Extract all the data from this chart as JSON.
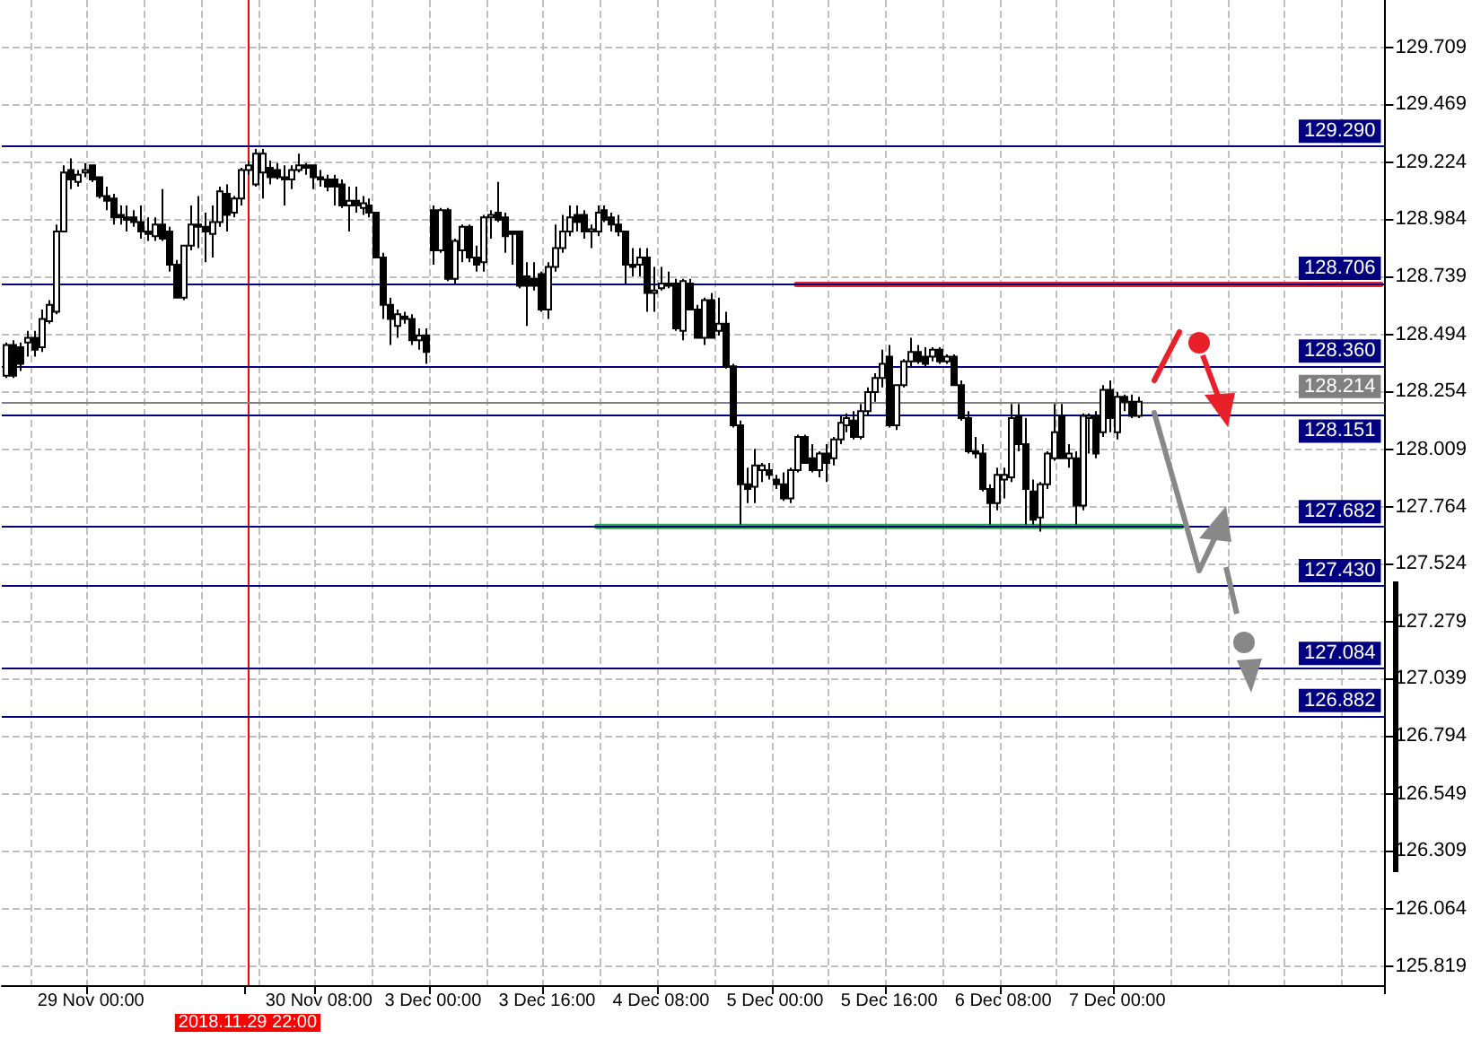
{
  "chart_data": {
    "type": "candlestick",
    "color": "#000000",
    "categories": [
      null,
      null,
      null,
      null,
      null,
      null,
      null,
      null,
      null,
      null,
      null,
      null,
      "29 Nov 00:00",
      null,
      null,
      null,
      null,
      null,
      null,
      null,
      null,
      null,
      null,
      null,
      null,
      null,
      null,
      null,
      null,
      null,
      null,
      null,
      null,
      null,
      "2018.11.29 22:00",
      null,
      null,
      null,
      null,
      null,
      null,
      null,
      null,
      null,
      "30 Nov 08:00",
      null,
      null,
      null,
      null,
      null,
      null,
      null,
      null,
      null,
      null,
      null,
      null,
      null,
      null,
      null,
      "3 Dec 00:00",
      null,
      null,
      null,
      null,
      null,
      null,
      null,
      null,
      null,
      null,
      null,
      null,
      null,
      null,
      null,
      "3 Dec 16:00",
      null,
      null,
      null,
      null,
      null,
      null,
      null,
      null,
      null,
      null,
      null,
      null,
      null,
      null,
      null,
      "4 Dec 08:00",
      null,
      null,
      null,
      null,
      null,
      null,
      null,
      null,
      null,
      null,
      null,
      null,
      null,
      null,
      null,
      "5 Dec 00:00",
      null,
      null,
      null,
      null,
      null,
      null,
      null,
      null,
      null,
      null,
      null,
      null,
      null,
      null,
      null,
      "5 Dec 16:00",
      null,
      null,
      null,
      null,
      null,
      null,
      null,
      null,
      null,
      null,
      null,
      null,
      null,
      null,
      null,
      "6 Dec 08:00",
      null,
      null,
      null,
      null,
      null,
      null,
      null,
      null,
      null,
      null,
      null,
      null,
      null,
      null,
      null,
      "7 Dec 00:00",
      null,
      null,
      null,
      null,
      null,
      null,
      null,
      null,
      null,
      null,
      null,
      null,
      null,
      null,
      null,
      null,
      null,
      null,
      null,
      null,
      null,
      null,
      null,
      null,
      null,
      null,
      null,
      null,
      null,
      null,
      null,
      null,
      null,
      null,
      null,
      null,
      null
    ],
    "ohlc": [
      [
        128.32,
        128.46,
        128.31,
        128.45
      ],
      [
        128.45,
        128.47,
        128.31,
        128.32
      ],
      [
        128.44,
        128.46,
        128.34,
        128.37
      ],
      [
        128.46,
        128.51,
        128.4,
        128.48
      ],
      [
        128.48,
        128.51,
        128.4,
        128.43
      ],
      [
        128.44,
        128.6,
        128.42,
        128.56
      ],
      [
        128.55,
        128.64,
        128.54,
        128.62
      ],
      [
        128.59,
        128.96,
        128.58,
        128.93
      ],
      [
        128.93,
        129.21,
        128.93,
        129.18
      ],
      [
        129.19,
        129.24,
        129.11,
        129.15
      ],
      [
        129.14,
        129.19,
        129.12,
        129.17
      ],
      [
        129.18,
        129.22,
        129.16,
        129.19
      ],
      [
        129.21,
        129.21,
        129.14,
        129.15
      ],
      [
        129.16,
        129.16,
        129.07,
        129.08
      ],
      [
        129.08,
        129.12,
        129.02,
        129.06
      ],
      [
        129.07,
        129.09,
        128.96,
        128.99
      ],
      [
        129.0,
        129.04,
        128.96,
        128.99
      ],
      [
        128.99,
        129.04,
        128.93,
        128.98
      ],
      [
        128.99,
        129.02,
        128.95,
        128.97
      ],
      [
        128.97,
        129.04,
        128.9,
        128.93
      ],
      [
        128.93,
        128.99,
        128.89,
        128.92
      ],
      [
        128.91,
        128.99,
        128.89,
        128.96
      ],
      [
        128.96,
        129.11,
        128.89,
        128.9
      ],
      [
        128.93,
        128.95,
        128.76,
        128.79
      ],
      [
        128.79,
        128.81,
        128.65,
        128.65
      ],
      [
        128.65,
        128.87,
        128.64,
        128.87
      ],
      [
        128.87,
        129.04,
        128.85,
        128.96
      ],
      [
        128.96,
        129.08,
        128.86,
        128.95
      ],
      [
        128.95,
        129.01,
        128.8,
        128.93
      ],
      [
        128.92,
        129.04,
        128.82,
        128.97
      ],
      [
        128.97,
        129.12,
        128.95,
        129.1
      ],
      [
        129.09,
        129.13,
        128.93,
        129.0
      ],
      [
        129.01,
        129.08,
        128.99,
        129.07
      ],
      [
        129.07,
        129.2,
        129.04,
        129.19
      ],
      [
        129.19,
        129.23,
        129.17,
        129.21
      ],
      [
        129.13,
        129.28,
        129.12,
        129.26
      ],
      [
        129.18,
        129.28,
        129.07,
        129.26
      ],
      [
        129.2,
        129.23,
        129.13,
        129.16
      ],
      [
        129.19,
        129.22,
        129.15,
        129.16
      ],
      [
        129.16,
        129.21,
        129.04,
        129.15
      ],
      [
        129.15,
        129.21,
        129.11,
        129.19
      ],
      [
        129.19,
        129.26,
        129.18,
        129.21
      ],
      [
        129.21,
        129.22,
        129.17,
        129.2
      ],
      [
        129.21,
        129.21,
        129.11,
        129.16
      ],
      [
        129.16,
        129.19,
        129.12,
        129.15
      ],
      [
        129.15,
        129.17,
        129.1,
        129.12
      ],
      [
        129.15,
        129.17,
        129.04,
        129.12
      ],
      [
        129.13,
        129.15,
        129.03,
        129.04
      ],
      [
        129.04,
        129.12,
        128.93,
        129.06
      ],
      [
        129.06,
        129.12,
        129.01,
        129.04
      ],
      [
        129.03,
        129.08,
        129.0,
        129.05
      ],
      [
        129.04,
        129.07,
        128.99,
        129.01
      ],
      [
        129.01,
        129.01,
        128.82,
        128.82
      ],
      [
        128.82,
        128.84,
        128.56,
        128.62
      ],
      [
        128.62,
        128.65,
        128.45,
        128.56
      ],
      [
        128.53,
        128.6,
        128.48,
        128.58
      ],
      [
        128.57,
        128.59,
        128.54,
        128.56
      ],
      [
        128.56,
        128.58,
        128.45,
        128.47
      ],
      [
        128.47,
        128.52,
        128.43,
        128.49
      ],
      [
        128.49,
        128.52,
        128.37,
        128.42
      ],
      [
        129.02,
        129.04,
        128.79,
        128.85
      ],
      [
        128.85,
        129.03,
        128.84,
        129.02
      ],
      [
        129.02,
        129.03,
        128.72,
        128.73
      ],
      [
        128.73,
        128.9,
        128.71,
        128.89
      ],
      [
        128.85,
        128.96,
        128.8,
        128.95
      ],
      [
        128.95,
        128.96,
        128.8,
        128.82
      ],
      [
        128.82,
        128.87,
        128.76,
        128.79
      ],
      [
        128.8,
        129.0,
        128.76,
        128.99
      ],
      [
        128.99,
        129.02,
        128.9,
        129.0
      ],
      [
        129.01,
        129.14,
        128.97,
        128.98
      ],
      [
        128.99,
        129.01,
        128.84,
        128.91
      ],
      [
        128.93,
        128.93,
        128.79,
        128.92
      ],
      [
        128.93,
        128.93,
        128.69,
        128.7
      ],
      [
        128.74,
        128.8,
        128.53,
        128.7
      ],
      [
        128.73,
        128.8,
        128.68,
        128.7
      ],
      [
        128.75,
        128.76,
        128.59,
        128.6
      ],
      [
        128.6,
        128.8,
        128.56,
        128.78
      ],
      [
        128.78,
        128.96,
        128.76,
        128.86
      ],
      [
        128.86,
        129.0,
        128.84,
        128.93
      ],
      [
        128.93,
        129.04,
        128.91,
        128.99
      ],
      [
        129.0,
        129.04,
        128.93,
        128.97
      ],
      [
        129.0,
        129.02,
        128.9,
        128.93
      ],
      [
        128.93,
        128.96,
        128.86,
        128.94
      ],
      [
        128.93,
        129.04,
        128.91,
        129.01
      ],
      [
        129.02,
        129.04,
        128.97,
        128.98
      ],
      [
        128.99,
        129.01,
        128.93,
        128.96
      ],
      [
        128.96,
        129.0,
        128.91,
        128.93
      ],
      [
        128.93,
        128.93,
        128.71,
        128.79
      ],
      [
        128.79,
        128.86,
        128.74,
        128.78
      ],
      [
        128.79,
        128.86,
        128.74,
        128.82
      ],
      [
        128.82,
        128.86,
        128.59,
        128.67
      ],
      [
        128.67,
        128.78,
        128.59,
        128.68
      ],
      [
        128.69,
        128.78,
        128.68,
        128.71
      ],
      [
        128.71,
        128.76,
        128.69,
        128.7
      ],
      [
        128.71,
        128.73,
        128.51,
        128.52
      ],
      [
        128.51,
        128.73,
        128.47,
        128.72
      ],
      [
        128.71,
        128.73,
        128.6,
        128.6
      ],
      [
        128.6,
        128.62,
        128.48,
        128.48
      ],
      [
        128.48,
        128.65,
        128.45,
        128.64
      ],
      [
        128.64,
        128.67,
        128.48,
        128.48
      ],
      [
        128.51,
        128.65,
        128.49,
        128.54
      ],
      [
        128.54,
        128.59,
        128.35,
        128.36
      ],
      [
        128.36,
        128.37,
        128.1,
        128.11
      ],
      [
        128.11,
        128.13,
        127.69,
        127.86
      ],
      [
        127.86,
        127.93,
        127.78,
        127.84
      ],
      [
        127.85,
        128.01,
        127.78,
        127.94
      ],
      [
        127.92,
        127.95,
        127.87,
        127.94
      ],
      [
        127.92,
        127.95,
        127.88,
        127.9
      ],
      [
        127.88,
        127.9,
        127.84,
        127.86
      ],
      [
        127.86,
        127.91,
        127.79,
        127.8
      ],
      [
        127.8,
        127.93,
        127.78,
        127.92
      ],
      [
        127.92,
        128.07,
        127.91,
        128.06
      ],
      [
        128.06,
        128.07,
        127.95,
        127.95
      ],
      [
        127.97,
        128.03,
        127.91,
        127.92
      ],
      [
        127.92,
        128.0,
        127.89,
        127.99
      ],
      [
        127.99,
        128.03,
        127.87,
        127.95
      ],
      [
        127.97,
        128.06,
        127.94,
        128.05
      ],
      [
        128.05,
        128.15,
        128.03,
        128.12
      ],
      [
        128.11,
        128.16,
        128.08,
        128.14
      ],
      [
        128.13,
        128.17,
        128.05,
        128.06
      ],
      [
        128.06,
        128.2,
        128.05,
        128.17
      ],
      [
        128.17,
        128.27,
        128.15,
        128.25
      ],
      [
        128.25,
        128.33,
        128.21,
        128.31
      ],
      [
        128.31,
        128.43,
        128.27,
        128.37
      ],
      [
        128.4,
        128.45,
        128.1,
        128.11
      ],
      [
        128.11,
        128.28,
        128.09,
        128.28
      ],
      [
        128.28,
        128.39,
        128.27,
        128.38
      ],
      [
        128.38,
        128.48,
        128.36,
        128.42
      ],
      [
        128.42,
        128.45,
        128.37,
        128.38
      ],
      [
        128.4,
        128.44,
        128.36,
        128.37
      ],
      [
        128.4,
        128.44,
        128.38,
        128.43
      ],
      [
        128.43,
        128.44,
        128.37,
        128.38
      ],
      [
        128.38,
        128.41,
        128.37,
        128.4
      ],
      [
        128.4,
        128.41,
        128.28,
        128.28
      ],
      [
        128.28,
        128.3,
        128.13,
        128.14
      ],
      [
        128.14,
        128.17,
        127.99,
        128.0
      ],
      [
        128.0,
        128.06,
        127.97,
        127.99
      ],
      [
        127.99,
        128.03,
        127.83,
        127.84
      ],
      [
        127.84,
        127.86,
        127.69,
        127.78
      ],
      [
        127.78,
        127.93,
        127.75,
        127.9
      ],
      [
        127.88,
        127.93,
        127.8,
        127.9
      ],
      [
        127.89,
        128.2,
        127.87,
        128.14
      ],
      [
        128.15,
        128.2,
        128.0,
        128.03
      ],
      [
        128.03,
        128.14,
        127.69,
        127.84
      ],
      [
        127.83,
        127.88,
        127.69,
        127.71
      ],
      [
        127.72,
        127.87,
        127.66,
        127.86
      ],
      [
        127.86,
        128.0,
        127.84,
        127.99
      ],
      [
        127.97,
        128.2,
        127.96,
        128.08
      ],
      [
        128.15,
        128.2,
        127.97,
        127.97
      ],
      [
        127.97,
        128.03,
        127.93,
        127.99
      ],
      [
        127.97,
        128.0,
        127.69,
        127.77
      ],
      [
        127.77,
        128.16,
        127.75,
        128.15
      ],
      [
        128.14,
        128.16,
        127.99,
        128.15
      ],
      [
        128.15,
        128.17,
        127.97,
        127.99
      ],
      [
        128.08,
        128.28,
        128.06,
        128.26
      ],
      [
        128.26,
        128.3,
        128.08,
        128.14
      ],
      [
        128.08,
        128.25,
        128.05,
        128.23
      ],
      [
        128.23,
        128.24,
        128.17,
        128.21
      ],
      [
        128.21,
        128.24,
        128.14,
        128.15
      ],
      [
        128.15,
        128.23,
        128.14,
        128.21
      ],
      null,
      null,
      null,
      null,
      null,
      null,
      null,
      null,
      null,
      null,
      null,
      null,
      null,
      null,
      null,
      null,
      null,
      null,
      null,
      null,
      null,
      null,
      null,
      null,
      null,
      null,
      null,
      null,
      null,
      null,
      null,
      null,
      null,
      null
    ],
    "series": [
      {
        "type": "line",
        "color": "#e8202a",
        "values": [
          null,
          null,
          null,
          null,
          null,
          null,
          null,
          null,
          null,
          null,
          null,
          null,
          null,
          null,
          null,
          null,
          null,
          null,
          null,
          null,
          null,
          null,
          null,
          null,
          null,
          null,
          null,
          null,
          null,
          null,
          null,
          null,
          null,
          null,
          null,
          null,
          null,
          null,
          null,
          null,
          null,
          null,
          null,
          null,
          null,
          null,
          null,
          null,
          null,
          null,
          null,
          null,
          null,
          null,
          null,
          null,
          null,
          null,
          null,
          null,
          null,
          null,
          null,
          null,
          null,
          null,
          null,
          null,
          null,
          null,
          null,
          null,
          null,
          null,
          null,
          null,
          null,
          null,
          null,
          null,
          null,
          null,
          null,
          null,
          null,
          null,
          null,
          null,
          null,
          null,
          null,
          null,
          null,
          null,
          null,
          null,
          null,
          null,
          null,
          null,
          null,
          null,
          null,
          null,
          null,
          null,
          null,
          null,
          null,
          null,
          null,
          128.706,
          128.706,
          128.706,
          128.706,
          128.706,
          128.706,
          128.706,
          128.706,
          128.706,
          128.706,
          128.706,
          128.706,
          128.706,
          128.706,
          128.706,
          128.706,
          128.706,
          128.706,
          128.706,
          128.706,
          128.706,
          128.706,
          128.706,
          128.706,
          128.706,
          128.706,
          128.706,
          128.706,
          128.706,
          128.706,
          128.706,
          128.706,
          128.706,
          128.706,
          128.706,
          128.706,
          128.706,
          128.706,
          128.706,
          128.706,
          128.706,
          128.706,
          128.706,
          128.706,
          128.706,
          128.706,
          128.706,
          128.706,
          128.706,
          128.706,
          128.706,
          128.706,
          128.706,
          128.706,
          128.706,
          128.706,
          128.706,
          128.706,
          128.706,
          128.706,
          128.706,
          128.706,
          128.706,
          128.706,
          128.706,
          128.706,
          128.706,
          128.706,
          128.706,
          128.706,
          128.706,
          128.706,
          128.706,
          128.706,
          128.706,
          128.706,
          128.706,
          128.706,
          128.706,
          128.706,
          128.706,
          128.706,
          128.706
        ]
      },
      {
        "type": "line",
        "color": "#2eaa4a",
        "values": [
          null,
          null,
          null,
          null,
          null,
          null,
          null,
          null,
          null,
          null,
          null,
          null,
          null,
          null,
          null,
          null,
          null,
          null,
          null,
          null,
          null,
          null,
          null,
          null,
          null,
          null,
          null,
          null,
          null,
          null,
          null,
          null,
          null,
          null,
          null,
          null,
          null,
          null,
          null,
          null,
          null,
          null,
          null,
          null,
          null,
          null,
          null,
          null,
          null,
          null,
          null,
          null,
          null,
          null,
          null,
          null,
          null,
          null,
          null,
          null,
          null,
          null,
          null,
          null,
          null,
          null,
          null,
          null,
          null,
          null,
          null,
          null,
          null,
          null,
          null,
          null,
          null,
          null,
          null,
          null,
          null,
          null,
          null,
          127.682,
          127.682,
          127.682,
          127.682,
          127.682,
          127.682,
          127.682,
          127.682,
          127.682,
          127.682,
          127.682,
          127.682,
          127.682,
          127.682,
          127.682,
          127.682,
          127.682,
          127.682,
          127.682,
          127.682,
          127.682,
          127.682,
          127.682,
          127.682,
          127.682,
          127.682,
          127.682,
          127.682,
          127.682,
          127.682,
          127.682,
          127.682,
          127.682,
          127.682,
          127.682,
          127.682,
          127.682,
          127.682,
          127.682,
          127.682,
          127.682,
          127.682,
          127.682,
          127.682,
          127.682,
          127.682,
          127.682,
          127.682,
          127.682,
          127.682,
          127.682,
          127.682,
          127.682,
          127.682,
          127.682,
          127.682,
          127.682,
          127.682,
          127.682,
          127.682,
          127.682,
          127.682,
          127.682,
          127.682,
          127.682,
          127.682,
          127.682,
          127.682,
          127.682,
          127.682,
          127.682,
          127.682,
          127.682,
          127.682,
          127.682,
          127.682,
          127.682,
          127.682,
          127.682,
          127.682,
          127.682,
          127.682,
          127.682,
          null,
          null,
          null,
          null,
          null,
          null,
          null,
          null,
          null,
          null,
          null,
          null,
          null,
          null,
          null,
          null,
          null,
          null,
          null,
          null,
          null,
          null,
          null,
          null,
          null,
          null,
          null,
          null
        ]
      }
    ],
    "ylim": [
      125.74,
      129.91
    ],
    "yticks": [
      129.709,
      129.469,
      129.224,
      128.984,
      128.739,
      128.494,
      128.254,
      128.009,
      127.764,
      127.524,
      127.279,
      127.039,
      126.794,
      126.549,
      126.309,
      126.064,
      125.819
    ],
    "grid": true,
    "ref_lines": [
      {
        "axis": "x",
        "value": "2018.11.29 22:00",
        "color": "#ff0000"
      },
      {
        "axis": "y",
        "value": 129.29,
        "label": "129.290",
        "color": "#000080"
      },
      {
        "axis": "y",
        "value": 128.706,
        "label": "128.706",
        "color": "#000080"
      },
      {
        "axis": "y",
        "value": 128.36,
        "label": "128.360",
        "color": "#000080"
      },
      {
        "axis": "y",
        "value": 128.214,
        "label": "128.214",
        "color": "#808080"
      },
      {
        "axis": "y",
        "value": 128.151,
        "label": "128.151",
        "color": "#000080"
      },
      {
        "axis": "y",
        "value": 127.682,
        "label": "127.682",
        "color": "#000080"
      },
      {
        "axis": "y",
        "value": 127.43,
        "label": "127.430",
        "color": "#000080"
      },
      {
        "axis": "y",
        "value": 127.084,
        "label": "127.084",
        "color": "#000080"
      },
      {
        "axis": "y",
        "value": 126.882,
        "label": "126.882",
        "color": "#000080"
      }
    ]
  }
}
